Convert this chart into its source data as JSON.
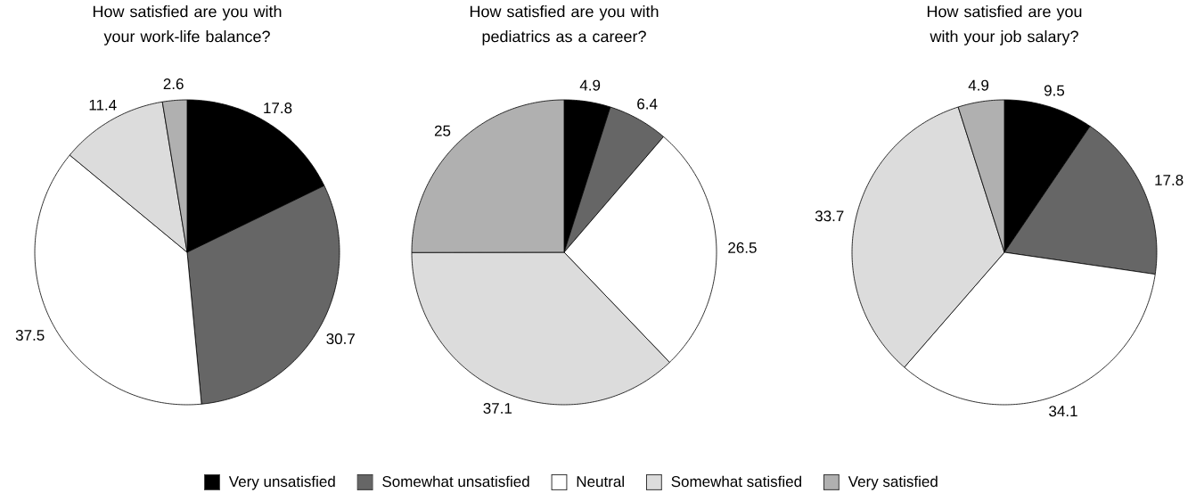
{
  "chart_data": [
    {
      "type": "pie",
      "title": "How satisfied are you with your work-life balance?",
      "values": [
        17.8,
        30.7,
        37.5,
        11.4,
        2.6
      ],
      "colors": [
        "#000000",
        "#666666",
        "#ffffff",
        "#dcdcdc",
        "#b0b0b0"
      ],
      "data_labels": true
    },
    {
      "type": "pie",
      "title": "How satisfied are you with pediatrics as a career?",
      "categories": [
        "Very unsatisfied",
        "Somewhat unsatisfied",
        "Neutral",
        "Somewhat satisfied",
        "Very satisfied"
      ],
      "values": [
        4.9,
        6.4,
        26.5,
        37.1,
        25
      ],
      "colors": [
        "#000000",
        "#666666",
        "#ffffff",
        "#dcdcdc",
        "#b0b0b0"
      ],
      "data_labels": true,
      "legend": "bottom"
    },
    {
      "type": "pie",
      "title": "How satisfied are you with your job salary?",
      "values": [
        9.5,
        17.8,
        34.1,
        33.7,
        4.9
      ],
      "colors": [
        "#000000",
        "#666666",
        "#ffffff",
        "#dcdcdc",
        "#b0b0b0"
      ],
      "data_labels": true
    }
  ]
}
